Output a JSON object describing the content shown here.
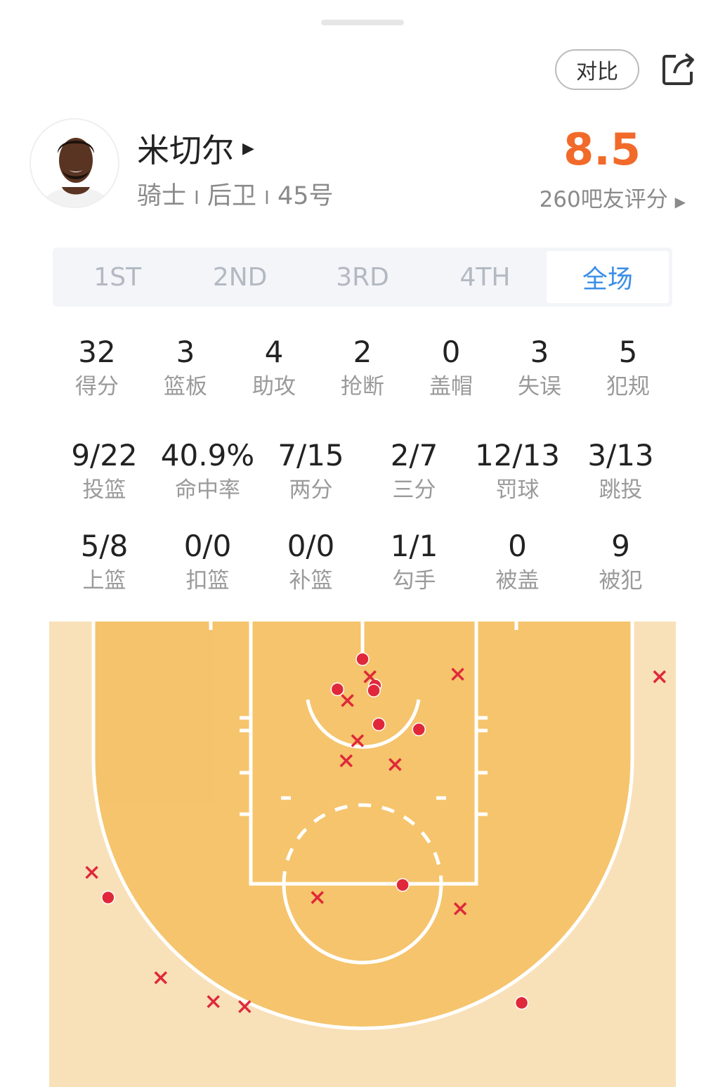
{
  "header": {
    "compare_label": "对比",
    "share_icon": "share-icon"
  },
  "player": {
    "name": "米切尔",
    "team": "骑士",
    "position": "后卫",
    "number": "45号",
    "separator": "I",
    "rating": "8.5",
    "raters": "260吧友评分",
    "rating_color": "#f26a2a"
  },
  "tabs": [
    {
      "label": "1ST"
    },
    {
      "label": "2ND"
    },
    {
      "label": "3RD"
    },
    {
      "label": "4TH"
    },
    {
      "label": "全场",
      "active": true
    }
  ],
  "stats_basic": [
    {
      "value": "32",
      "label": "得分"
    },
    {
      "value": "3",
      "label": "篮板"
    },
    {
      "value": "4",
      "label": "助攻"
    },
    {
      "value": "2",
      "label": "抢断"
    },
    {
      "value": "0",
      "label": "盖帽"
    },
    {
      "value": "3",
      "label": "失误"
    },
    {
      "value": "5",
      "label": "犯规"
    }
  ],
  "stats_shooting": [
    {
      "value": "9/22",
      "label": "投篮"
    },
    {
      "value": "40.9%",
      "label": "命中率"
    },
    {
      "value": "7/15",
      "label": "两分"
    },
    {
      "value": "2/7",
      "label": "三分"
    },
    {
      "value": "12/13",
      "label": "罚球"
    },
    {
      "value": "3/13",
      "label": "跳投"
    }
  ],
  "stats_shot_types": [
    {
      "value": "5/8",
      "label": "上篮"
    },
    {
      "value": "0/0",
      "label": "扣篮"
    },
    {
      "value": "0/0",
      "label": "补篮"
    },
    {
      "value": "1/1",
      "label": "勾手"
    },
    {
      "value": "0",
      "label": "被盖"
    },
    {
      "value": "9",
      "label": "被犯"
    }
  ],
  "shot_chart": {
    "units": "ft from left sideline / from baseline",
    "made_color": "#e0283a",
    "shots": [
      {
        "x": 25.0,
        "y": 3.0,
        "made": true
      },
      {
        "x": 23.0,
        "y": 5.4,
        "made": true
      },
      {
        "x": 26.0,
        "y": 5.1,
        "made": true
      },
      {
        "x": 25.9,
        "y": 5.5,
        "made": true
      },
      {
        "x": 26.3,
        "y": 8.2,
        "made": true
      },
      {
        "x": 29.5,
        "y": 8.6,
        "made": true
      },
      {
        "x": 28.2,
        "y": 21.0,
        "made": true
      },
      {
        "x": 4.7,
        "y": 22.0,
        "made": true
      },
      {
        "x": 37.7,
        "y": 30.4,
        "made": true
      },
      {
        "x": 25.6,
        "y": 4.4,
        "made": false
      },
      {
        "x": 23.8,
        "y": 6.3,
        "made": false
      },
      {
        "x": 32.6,
        "y": 4.2,
        "made": false
      },
      {
        "x": 48.7,
        "y": 4.4,
        "made": false
      },
      {
        "x": 24.6,
        "y": 9.5,
        "made": false
      },
      {
        "x": 23.7,
        "y": 11.1,
        "made": false
      },
      {
        "x": 27.6,
        "y": 11.4,
        "made": false
      },
      {
        "x": 3.4,
        "y": 20.0,
        "made": false
      },
      {
        "x": 21.4,
        "y": 22.0,
        "made": false
      },
      {
        "x": 32.8,
        "y": 22.9,
        "made": false
      },
      {
        "x": 8.9,
        "y": 28.4,
        "made": false
      },
      {
        "x": 13.1,
        "y": 30.3,
        "made": false
      },
      {
        "x": 15.6,
        "y": 30.7,
        "made": false
      }
    ]
  }
}
